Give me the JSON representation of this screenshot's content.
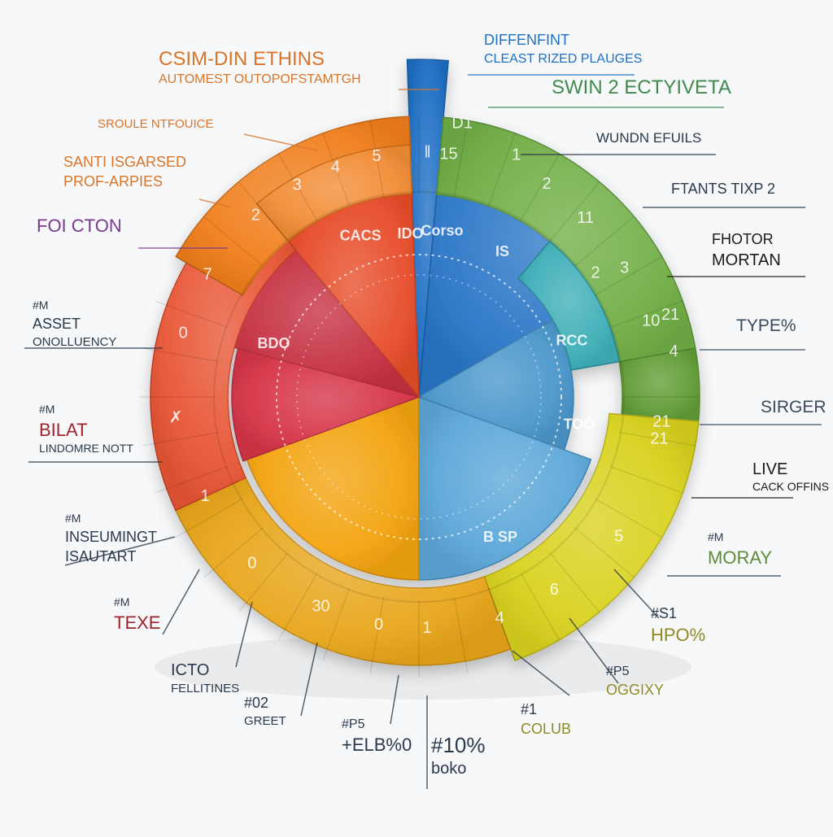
{
  "chart_data": {
    "type": "pie",
    "title": "",
    "segments": [
      {
        "color": "#1f6fc4"
      },
      {
        "color": "#6aab3c"
      },
      {
        "color": "#2aa6b0"
      },
      {
        "color": "#d9d21e"
      },
      {
        "color": "#4e9fd6"
      },
      {
        "color": "#f3a410"
      },
      {
        "color": "#e8a61a"
      },
      {
        "color": "#e74d2a"
      },
      {
        "color": "#d63447"
      },
      {
        "color": "#f07e1b"
      }
    ],
    "ring_labels": [
      "15",
      "D1",
      "1",
      "2",
      "11",
      "3",
      "2",
      "10",
      "21",
      "4",
      "21",
      "21",
      "5",
      "6",
      "4",
      "1",
      "0",
      "30",
      "0",
      "1",
      "✗",
      "0",
      "7",
      "2",
      "3",
      "4",
      "5",
      "‖"
    ],
    "inner_labels": [
      "CACS",
      "IDO",
      "Corso",
      "IS",
      "RCC",
      "TOO",
      "B SP",
      "BDO"
    ],
    "callouts": [
      {
        "id": "c1",
        "lines": [
          {
            "text": "CSIM-DIN ETHINS",
            "color": "#d9752a",
            "size": 24
          },
          {
            "text": "AUTOMEST OUTOPOFSTAMTGH",
            "color": "#d9752a",
            "size": 16
          }
        ]
      },
      {
        "id": "c2",
        "lines": [
          {
            "text": "SROULE NTFOUICE",
            "color": "#d9752a",
            "size": 15
          }
        ]
      },
      {
        "id": "c3",
        "lines": [
          {
            "text": "SANTI ISGARSED",
            "color": "#d9752a",
            "size": 18
          },
          {
            "text": "PROF-ARPIES",
            "color": "#d9752a",
            "size": 18
          }
        ]
      },
      {
        "id": "c4",
        "lines": [
          {
            "text": "FOI CTON",
            "color": "#7a3a8c",
            "size": 22
          }
        ]
      },
      {
        "id": "c5",
        "lines": [
          {
            "text": "#M",
            "color": "#2a3a4a",
            "size": 14
          },
          {
            "text": "ASSET",
            "color": "#2a3a4a",
            "size": 18
          },
          {
            "text": "ONOLLUENCY",
            "color": "#2a3a4a",
            "size": 15
          }
        ]
      },
      {
        "id": "c6",
        "lines": [
          {
            "text": "#M",
            "color": "#2a3a4a",
            "size": 14
          },
          {
            "text": "BILAT",
            "color": "#a0242c",
            "size": 22
          },
          {
            "text": "LINDOMRE NOTT",
            "color": "#2a3a4a",
            "size": 14
          }
        ]
      },
      {
        "id": "c7",
        "lines": [
          {
            "text": "#M",
            "color": "#2a3a4a",
            "size": 14
          },
          {
            "text": "INSEUMINGT",
            "color": "#2a3a4a",
            "size": 18
          },
          {
            "text": "ISAUTART",
            "color": "#2a3a4a",
            "size": 18
          }
        ]
      },
      {
        "id": "c8",
        "lines": [
          {
            "text": "#M",
            "color": "#2a3a4a",
            "size": 14
          },
          {
            "text": "TEXE",
            "color": "#a0242c",
            "size": 22
          }
        ]
      },
      {
        "id": "c9",
        "lines": [
          {
            "text": "ICTO",
            "color": "#2a3a4a",
            "size": 20
          },
          {
            "text": "FELLITINES",
            "color": "#2a3a4a",
            "size": 15
          }
        ]
      },
      {
        "id": "c10",
        "lines": [
          {
            "text": "#02",
            "color": "#2a3a4a",
            "size": 18
          },
          {
            "text": "GREET",
            "color": "#2a3a4a",
            "size": 15
          }
        ]
      },
      {
        "id": "c11",
        "lines": [
          {
            "text": "#P5",
            "color": "#2a3a4a",
            "size": 16
          },
          {
            "text": "+ELB%0",
            "color": "#2a3a4a",
            "size": 22
          }
        ]
      },
      {
        "id": "c12",
        "lines": [
          {
            "text": "#10%",
            "color": "#2a3a4a",
            "size": 26
          },
          {
            "text": "boko",
            "color": "#2a3a4a",
            "size": 20
          }
        ]
      },
      {
        "id": "c13",
        "lines": [
          {
            "text": "#1",
            "color": "#2a3a4a",
            "size": 18
          },
          {
            "text": "COLUB",
            "color": "#8f8a22",
            "size": 18
          }
        ]
      },
      {
        "id": "c14",
        "lines": [
          {
            "text": "#P5",
            "color": "#2a3a4a",
            "size": 16
          },
          {
            "text": "OGGIXY",
            "color": "#8f8a22",
            "size": 18
          }
        ]
      },
      {
        "id": "c15",
        "lines": [
          {
            "text": "#S1",
            "color": "#2a3a4a",
            "size": 18
          },
          {
            "text": "HPO%",
            "color": "#8f8a22",
            "size": 22
          }
        ]
      },
      {
        "id": "c16",
        "lines": [
          {
            "text": "#M",
            "color": "#2a3a4a",
            "size": 14
          },
          {
            "text": "MORAY",
            "color": "#5f8a3c",
            "size": 22
          }
        ]
      },
      {
        "id": "c17",
        "lines": [
          {
            "text": "LIVE",
            "color": "#1a1a1a",
            "size": 20
          },
          {
            "text": "CACK OFFINS",
            "color": "#1a1a1a",
            "size": 14
          }
        ]
      },
      {
        "id": "c18",
        "lines": [
          {
            "text": "SIRGER",
            "color": "#3a4a5a",
            "size": 21
          }
        ]
      },
      {
        "id": "c19",
        "lines": [
          {
            "text": "TYPE%",
            "color": "#3a4a5a",
            "size": 21
          }
        ]
      },
      {
        "id": "c20",
        "lines": [
          {
            "text": "FHOTOR",
            "color": "#1a1a1a",
            "size": 18
          },
          {
            "text": "MORTAN",
            "color": "#1a1a1a",
            "size": 20
          }
        ]
      },
      {
        "id": "c21",
        "lines": [
          {
            "text": "FTANTS TIXP 2",
            "color": "#2a3a4a",
            "size": 18
          }
        ]
      },
      {
        "id": "c22",
        "lines": [
          {
            "text": "WUNDN EFUILS",
            "color": "#2a3a4a",
            "size": 17
          }
        ]
      },
      {
        "id": "c23",
        "lines": [
          {
            "text": "SWIN 2 ECTYIVETA",
            "color": "#3f8a4c",
            "size": 24
          }
        ]
      },
      {
        "id": "c24",
        "lines": [
          {
            "text": "DIFFENFINT",
            "color": "#1f6fc4",
            "size": 18
          },
          {
            "text": "CLEAST RIZED PLAUGES",
            "color": "#1f6fc4",
            "size": 16
          }
        ]
      }
    ]
  }
}
